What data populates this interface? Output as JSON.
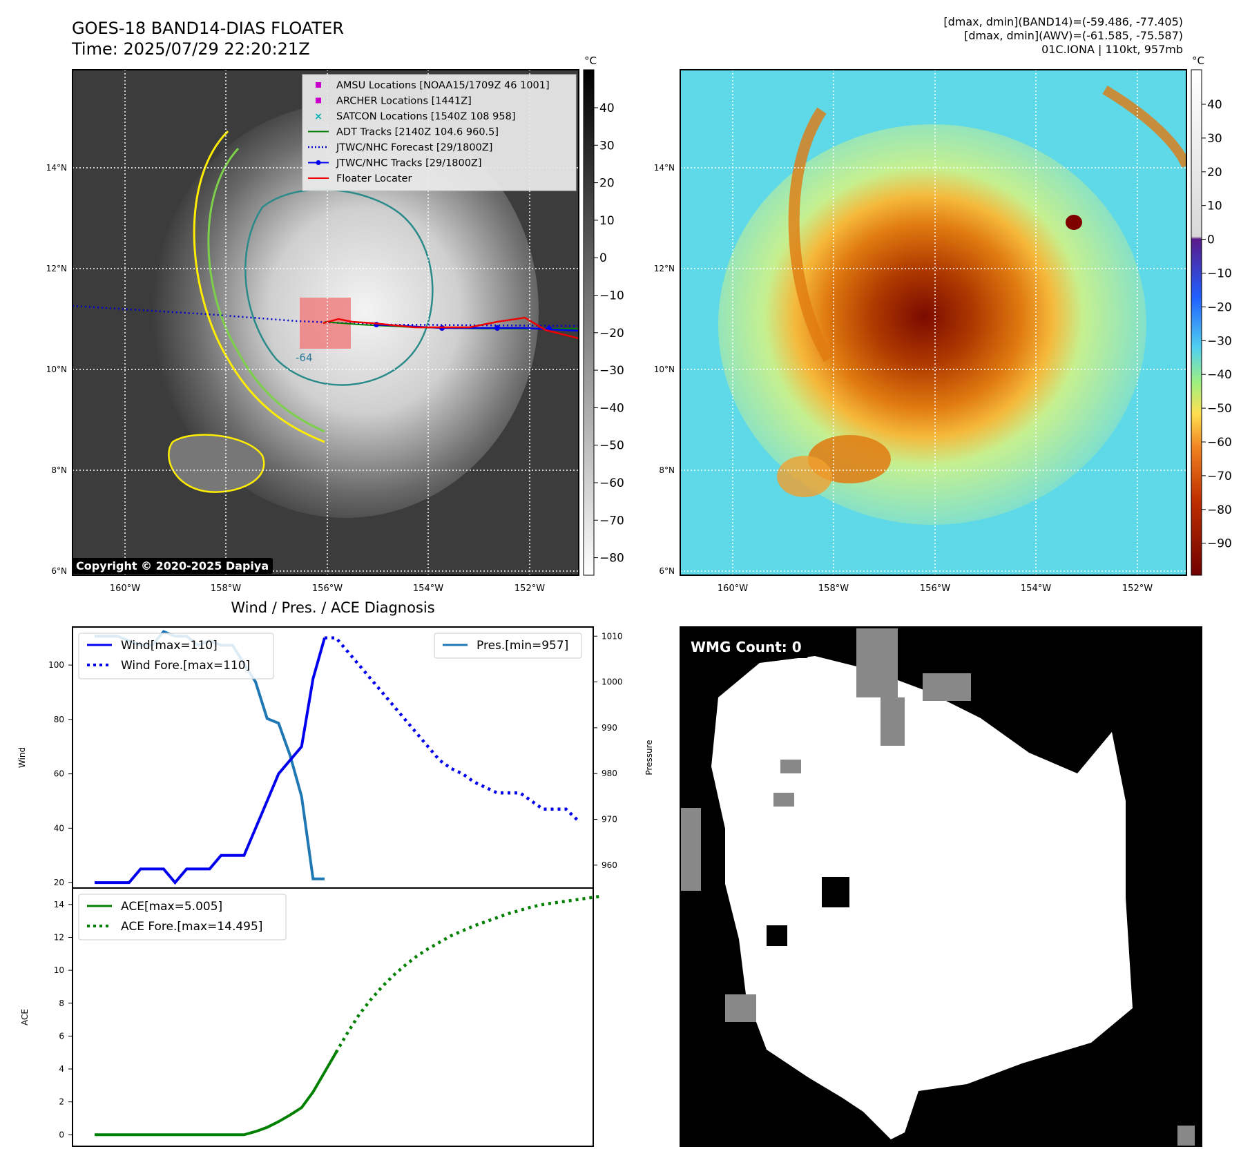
{
  "header": {
    "title_line1": "GOES-18 BAND14-DIAS FLOATER",
    "title_line2": "Time: 2025/07/29 22:20:21Z",
    "right_line1": "[dmax, dmin](BAND14)=(-59.486, -77.405)",
    "right_line2": "[dmax, dmin](AWV)=(-61.585, -75.587)",
    "right_line3": "01C.IONA | 110kt, 957mb"
  },
  "map_axes": {
    "lat_labels": [
      "14°N",
      "12°N",
      "10°N",
      "8°N",
      "6°N"
    ],
    "lon_labels": [
      "160°W",
      "158°W",
      "156°W",
      "154°W",
      "152°W"
    ]
  },
  "ir_panel": {
    "copyright": "Copyright © 2020-2025 Dapiya",
    "colorbar_unit": "°C",
    "colorbar_ticks": [
      "40",
      "30",
      "20",
      "10",
      "0",
      "−10",
      "−20",
      "−30",
      "−40",
      "−50",
      "−60",
      "−70",
      "−80"
    ],
    "contour_label": "-64",
    "legend": [
      {
        "label": "AMSU Locations [NOAA15/1709Z 46 1001]",
        "color": "#cc00cc",
        "marker": "square"
      },
      {
        "label": "ARCHER Locations [1441Z]",
        "color": "#cc00cc",
        "marker": "square"
      },
      {
        "label": "SATCON Locations [1540Z 108 958]",
        "color": "#00b0b0",
        "marker": "x"
      },
      {
        "label": "ADT Tracks [2140Z 104.6 960.5]",
        "color": "#008000",
        "marker": "line"
      },
      {
        "label": "JTWC/NHC Forecast [29/1800Z]",
        "color": "#0000cc",
        "marker": "dotted"
      },
      {
        "label": "JTWC/NHC Tracks [29/1800Z]",
        "color": "#0000ee",
        "marker": "line-dot"
      },
      {
        "label": "Floater Locater",
        "color": "#ee0000",
        "marker": "line"
      }
    ]
  },
  "awv_panel": {
    "colorbar_unit": "°C",
    "colorbar_ticks": [
      "40",
      "30",
      "20",
      "10",
      "0",
      "−10",
      "−20",
      "−30",
      "−40",
      "−50",
      "−60",
      "−70",
      "−80",
      "−90"
    ]
  },
  "diagnosis": {
    "title": "Wind / Pres. / ACE Diagnosis",
    "wind_ylabel": "Wind",
    "pres_ylabel": "Pressure",
    "ace_ylabel": "ACE",
    "wind_legend": [
      "Wind[max=110]",
      "Wind Fore.[max=110]"
    ],
    "pres_legend": "Pres.[min=957]",
    "ace_legend": [
      "ACE[max=5.005]",
      "ACE Fore.[max=14.495]"
    ]
  },
  "wmg_panel": {
    "label": "WMG Count: 0"
  },
  "colors": {
    "wind": "#0000ee",
    "pressure": "#1f77b4",
    "ace": "#008000"
  },
  "chart_data": [
    {
      "type": "line",
      "id": "wind",
      "ylim": [
        18,
        114
      ],
      "yticks": [
        20,
        40,
        60,
        80,
        100
      ],
      "series": [
        {
          "name": "Wind[max=110]",
          "x": [
            0,
            1,
            2,
            3,
            4,
            5,
            6,
            7,
            8,
            9,
            10,
            11,
            12,
            13,
            14,
            15,
            16,
            17,
            18,
            19,
            20
          ],
          "values": [
            20,
            20,
            20,
            20,
            25,
            25,
            25,
            20,
            25,
            25,
            25,
            30,
            30,
            30,
            40,
            50,
            60,
            65,
            70,
            95,
            110
          ]
        },
        {
          "name": "Wind Fore.[max=110]",
          "x": [
            20,
            21,
            22,
            23,
            24,
            25,
            26,
            27,
            28,
            29,
            30,
            31,
            32,
            33,
            34,
            35,
            36,
            37,
            38,
            39,
            40,
            41,
            42
          ],
          "values": [
            110,
            110,
            105,
            100,
            95,
            90,
            85,
            80,
            75,
            70,
            65,
            62,
            60,
            57,
            55,
            53,
            53,
            53,
            50,
            47,
            47,
            47,
            43
          ]
        }
      ]
    },
    {
      "type": "line",
      "id": "pressure",
      "ylim": [
        955,
        1012
      ],
      "yticks": [
        960,
        970,
        980,
        990,
        1000,
        1010
      ],
      "series": [
        {
          "name": "Pres.[min=957]",
          "x": [
            0,
            1,
            2,
            3,
            4,
            5,
            6,
            7,
            8,
            9,
            10,
            11,
            12,
            13,
            14,
            15,
            16,
            17,
            18,
            19,
            20
          ],
          "values": [
            1010,
            1010,
            1010,
            1009,
            1008,
            1008,
            1011,
            1010,
            1010,
            1008,
            1009,
            1008,
            1008,
            1004,
            1000,
            992,
            991,
            984,
            975,
            957,
            957
          ]
        }
      ]
    },
    {
      "type": "line",
      "id": "ace",
      "ylim": [
        -0.7,
        15
      ],
      "yticks": [
        0,
        2,
        4,
        6,
        8,
        10,
        12,
        14
      ],
      "series": [
        {
          "name": "ACE[max=5.005]",
          "x": [
            0,
            1,
            2,
            3,
            4,
            5,
            6,
            7,
            8,
            9,
            10,
            11,
            12,
            13,
            14,
            15,
            16,
            17,
            18,
            19,
            20,
            21
          ],
          "values": [
            0,
            0,
            0,
            0,
            0,
            0,
            0,
            0,
            0,
            0,
            0,
            0,
            0,
            0,
            0.2,
            0.45,
            0.8,
            1.2,
            1.65,
            2.6,
            3.8,
            5.005
          ]
        },
        {
          "name": "ACE Fore.[max=14.495]",
          "x": [
            21,
            22,
            23,
            24,
            25,
            26,
            27,
            28,
            29,
            30,
            31,
            32,
            33,
            34,
            35,
            36,
            37,
            38,
            39,
            40,
            41,
            42,
            43,
            44
          ],
          "values": [
            5.005,
            6.2,
            7.3,
            8.2,
            9.0,
            9.7,
            10.3,
            10.85,
            11.3,
            11.7,
            12.1,
            12.4,
            12.7,
            12.95,
            13.2,
            13.45,
            13.65,
            13.85,
            14.0,
            14.1,
            14.2,
            14.3,
            14.4,
            14.495
          ]
        }
      ]
    }
  ]
}
